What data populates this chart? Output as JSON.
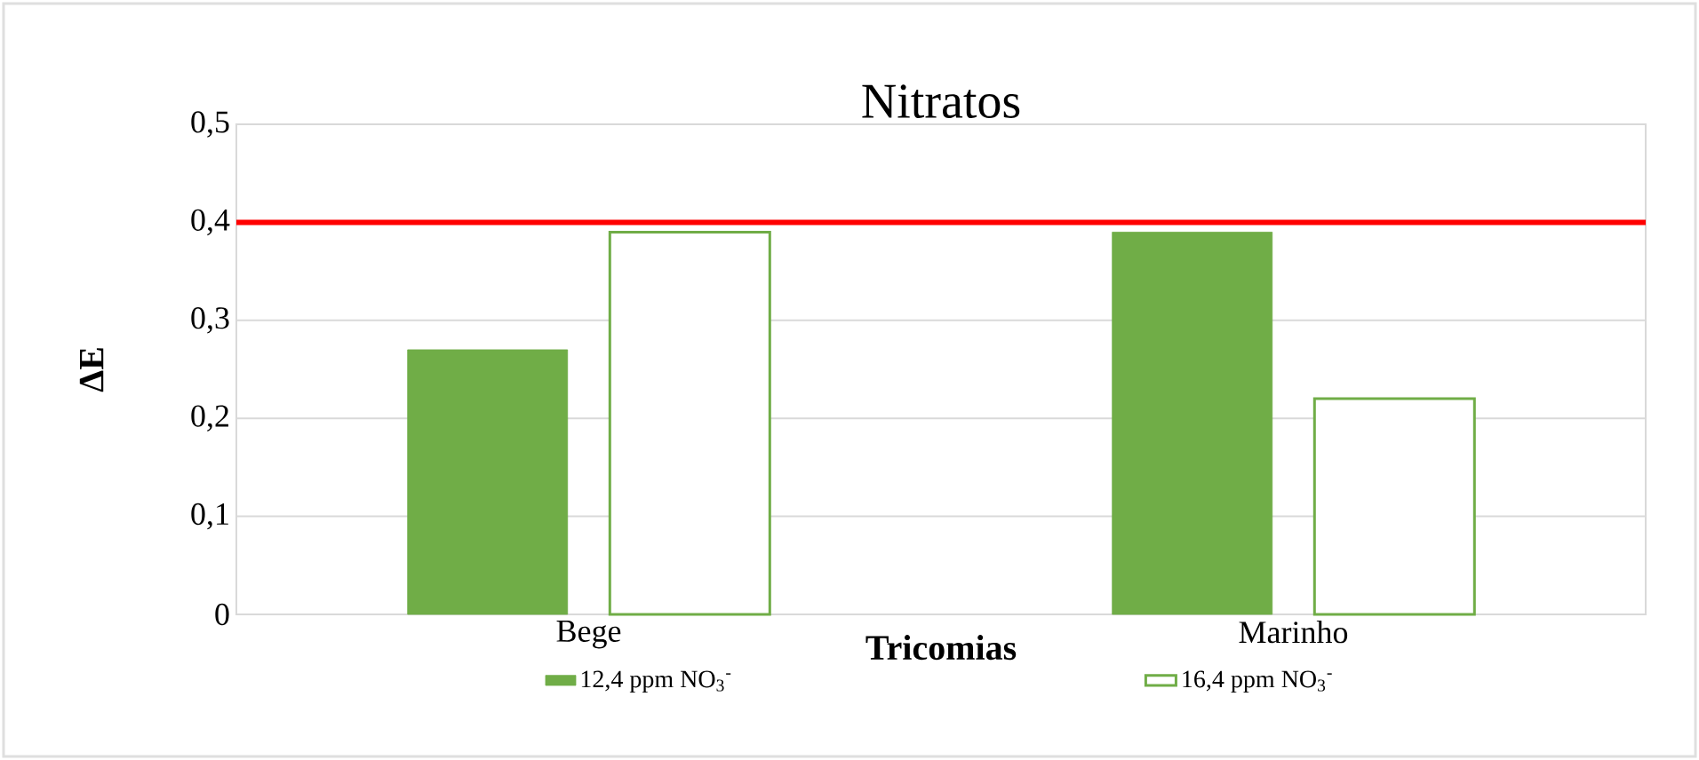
{
  "chart_data": {
    "type": "bar",
    "title": "Nitratos",
    "xlabel": "Tricomias",
    "ylabel": "ΔE",
    "categories": [
      "Bege",
      "Marinho"
    ],
    "series": [
      {
        "name": "12,4 ppm NO$_{3}$$^{-}$",
        "color": "#70ad47",
        "values": [
          0.27,
          0.39
        ]
      },
      {
        "name": "16,4 ppm NO$_{3}$$^{-}$",
        "color": "#70ad47",
        "values": [
          0.39,
          0.22
        ]
      }
    ],
    "ylim": [
      0,
      0.5
    ],
    "yticks": [
      0,
      {
        "value": 0.1,
        "label": "0,1"
      },
      {
        "value": 0.2,
        "label": "0,2"
      },
      {
        "value": 0.3,
        "label": "0,3"
      },
      {
        "value": 0.4,
        "label": "0,4"
      },
      {
        "value": 0.5,
        "label": "0,5"
      }
    ],
    "ref_lines": [
      {
        "axis": "y",
        "value": 0.4,
        "color": "#ff0000"
      }
    ],
    "grid": "y",
    "legend": "bottom"
  }
}
